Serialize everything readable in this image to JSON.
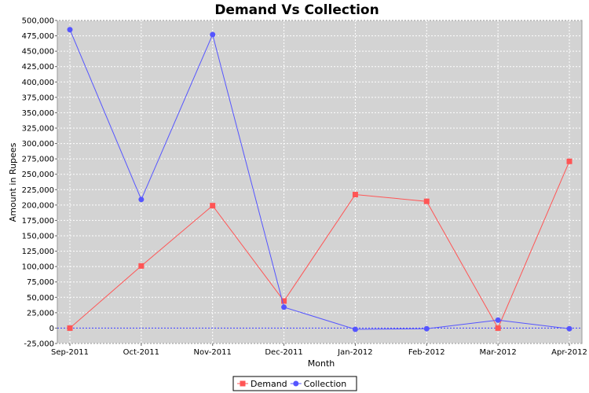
{
  "chart_data": {
    "type": "line",
    "title": "Demand Vs Collection",
    "xlabel": "Month",
    "ylabel": "Amount in Rupees",
    "categories": [
      "Sep-2011",
      "Oct-2011",
      "Nov-2011",
      "Dec-2011",
      "Jan-2012",
      "Feb-2012",
      "Mar-2012",
      "Apr-2012"
    ],
    "ylim": [
      -25000,
      500000
    ],
    "yticks": [
      -25000,
      0,
      25000,
      50000,
      75000,
      100000,
      125000,
      150000,
      175000,
      200000,
      225000,
      250000,
      275000,
      300000,
      325000,
      350000,
      375000,
      400000,
      425000,
      450000,
      475000,
      500000
    ],
    "ytick_labels": [
      "-25,000",
      "0",
      "25,000",
      "50,000",
      "75,000",
      "100,000",
      "125,000",
      "150,000",
      "175,000",
      "200,000",
      "225,000",
      "250,000",
      "275,000",
      "300,000",
      "325,000",
      "350,000",
      "375,000",
      "400,000",
      "425,000",
      "450,000",
      "475,000",
      "500,000"
    ],
    "grid": true,
    "zero_line": true,
    "legend_position": "bottom-center",
    "series": [
      {
        "name": "Demand",
        "color": "#ff5555",
        "marker": "square",
        "values": [
          0,
          101000,
          199000,
          44000,
          217000,
          206000,
          0,
          271000
        ]
      },
      {
        "name": "Collection",
        "color": "#5555ff",
        "marker": "circle",
        "values": [
          485000,
          209000,
          477000,
          34000,
          -2000,
          -1000,
          13000,
          -1000
        ]
      }
    ]
  }
}
